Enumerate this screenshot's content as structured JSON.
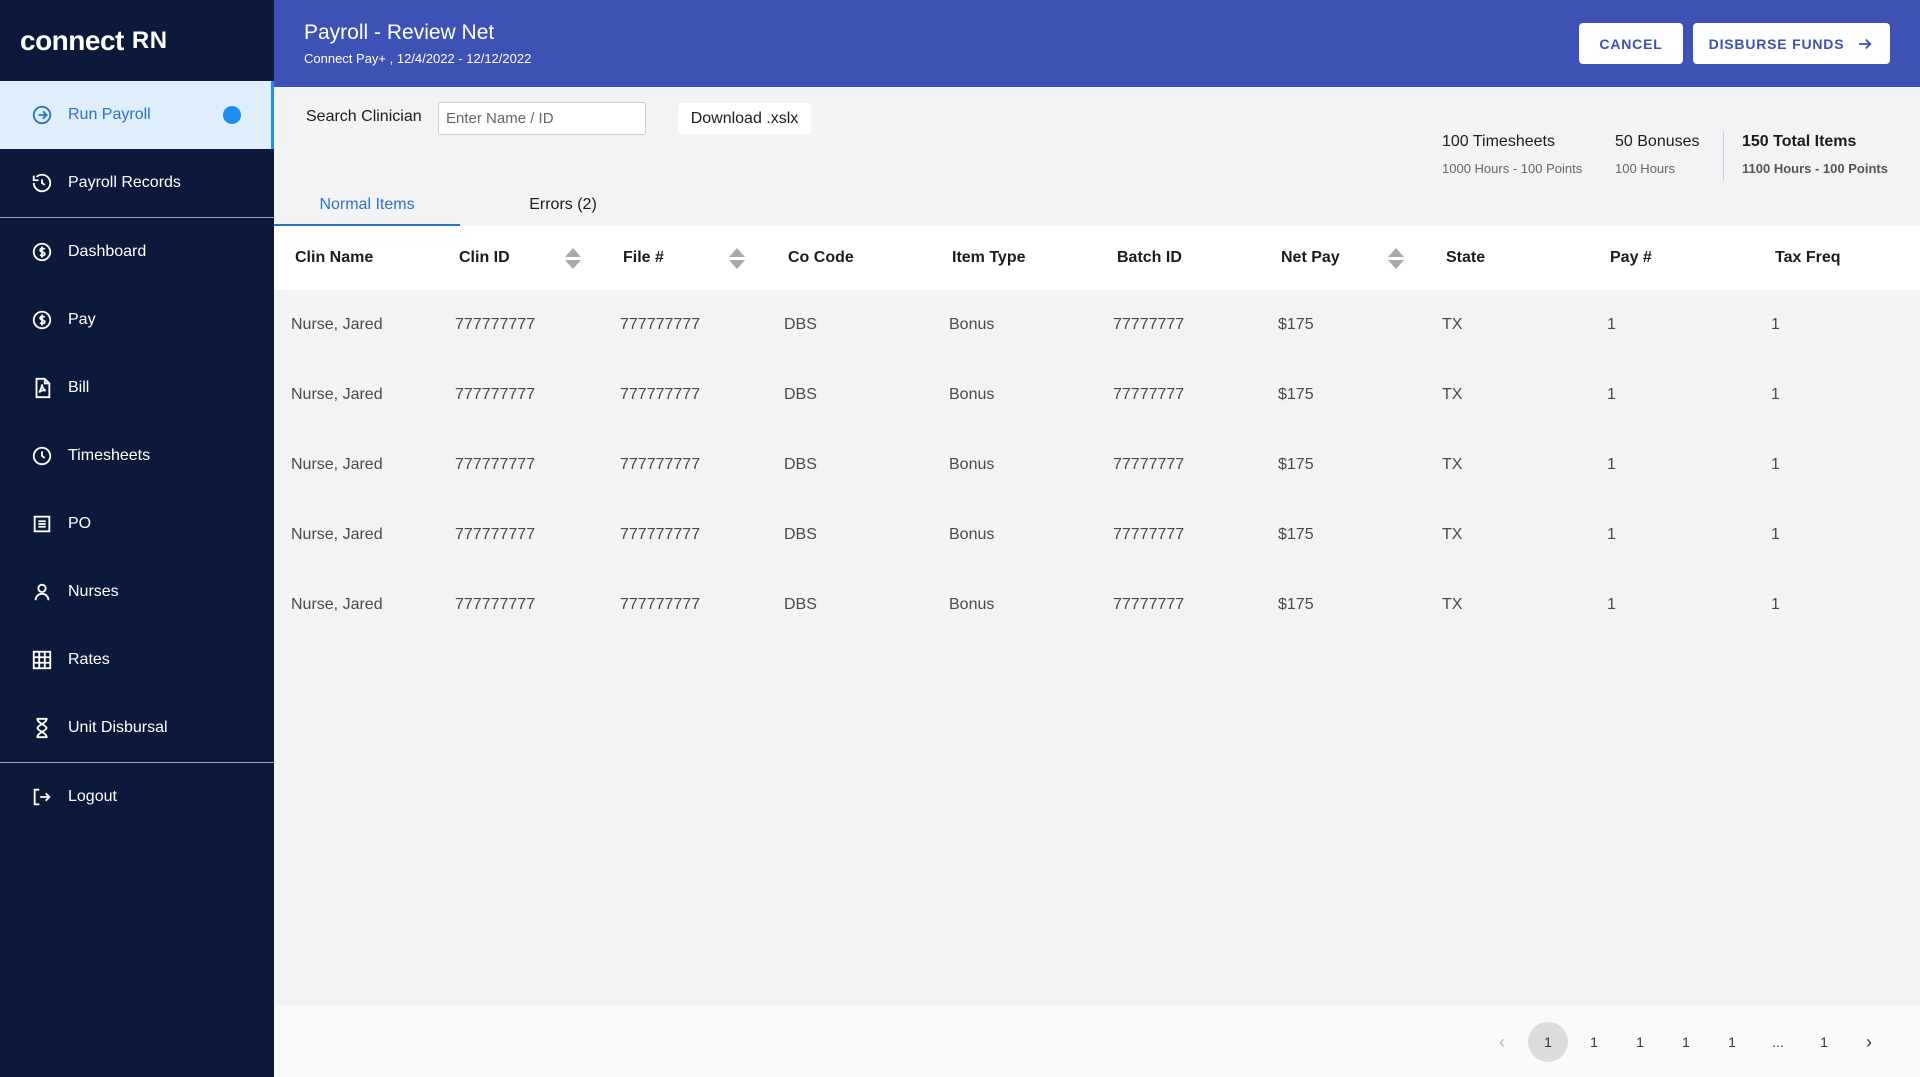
{
  "brand": {
    "logo_text": "connect",
    "logo_suffix": "RN"
  },
  "sidebar": {
    "items": [
      {
        "label": "Run Payroll",
        "icon": "arrow-circle-icon"
      },
      {
        "label": "Payroll Records",
        "icon": "history-icon"
      },
      {
        "label": "Dashboard",
        "icon": "dollar-circle-icon"
      },
      {
        "label": "Pay",
        "icon": "dollar-circle-icon"
      },
      {
        "label": "Bill",
        "icon": "pdf-file-icon"
      },
      {
        "label": "Timesheets",
        "icon": "clock-icon"
      },
      {
        "label": "PO",
        "icon": "list-doc-icon"
      },
      {
        "label": "Nurses",
        "icon": "person-icon"
      },
      {
        "label": "Rates",
        "icon": "grid-icon"
      },
      {
        "label": "Unit Disbursal",
        "icon": "hourglass-icon"
      },
      {
        "label": "Logout",
        "icon": "logout-icon"
      }
    ]
  },
  "header": {
    "title": "Payroll - Review Net",
    "subtitle": "Connect Pay+ , 12/4/2022 - 12/12/2022",
    "cancel_label": "CANCEL",
    "disburse_label": "DISBURSE FUNDS"
  },
  "toolbar": {
    "search_label": "Search Clinician",
    "search_placeholder": "Enter Name / ID",
    "download_label": "Download .xslx"
  },
  "summary": [
    {
      "main": "100 Timesheets",
      "sub": "1000 Hours - 100 Points"
    },
    {
      "main": "50 Bonuses",
      "sub": "100 Hours"
    },
    {
      "main": "150 Total Items",
      "sub": "1100 Hours - 100 Points"
    }
  ],
  "tabs": [
    {
      "label": "Normal Items"
    },
    {
      "label": "Errors (2)"
    }
  ],
  "table": {
    "columns": [
      "Clin Name",
      "Clin ID",
      "File #",
      "Co Code",
      "Item Type",
      "Batch ID",
      "Net Pay",
      "State",
      "Pay #",
      "Tax Freq"
    ],
    "rows": [
      [
        "Nurse, Jared",
        "777777777",
        "777777777",
        "DBS",
        "Bonus",
        "77777777",
        "$175",
        "TX",
        "1",
        "1"
      ],
      [
        "Nurse, Jared",
        "777777777",
        "777777777",
        "DBS",
        "Bonus",
        "77777777",
        "$175",
        "TX",
        "1",
        "1"
      ],
      [
        "Nurse, Jared",
        "777777777",
        "777777777",
        "DBS",
        "Bonus",
        "77777777",
        "$175",
        "TX",
        "1",
        "1"
      ],
      [
        "Nurse, Jared",
        "777777777",
        "777777777",
        "DBS",
        "Bonus",
        "77777777",
        "$175",
        "TX",
        "1",
        "1"
      ],
      [
        "Nurse, Jared",
        "777777777",
        "777777777",
        "DBS",
        "Bonus",
        "77777777",
        "$175",
        "TX",
        "1",
        "1"
      ]
    ]
  },
  "pagination": {
    "prev": "‹",
    "next": "›",
    "pages": [
      "1",
      "1",
      "1",
      "1",
      "1",
      "...",
      "1"
    ]
  },
  "colors": {
    "sidebar_bg": "#0b1a3b",
    "header_bg": "#3e51b5",
    "accent": "#2c72c6",
    "active_dot": "#1f8ef1"
  }
}
